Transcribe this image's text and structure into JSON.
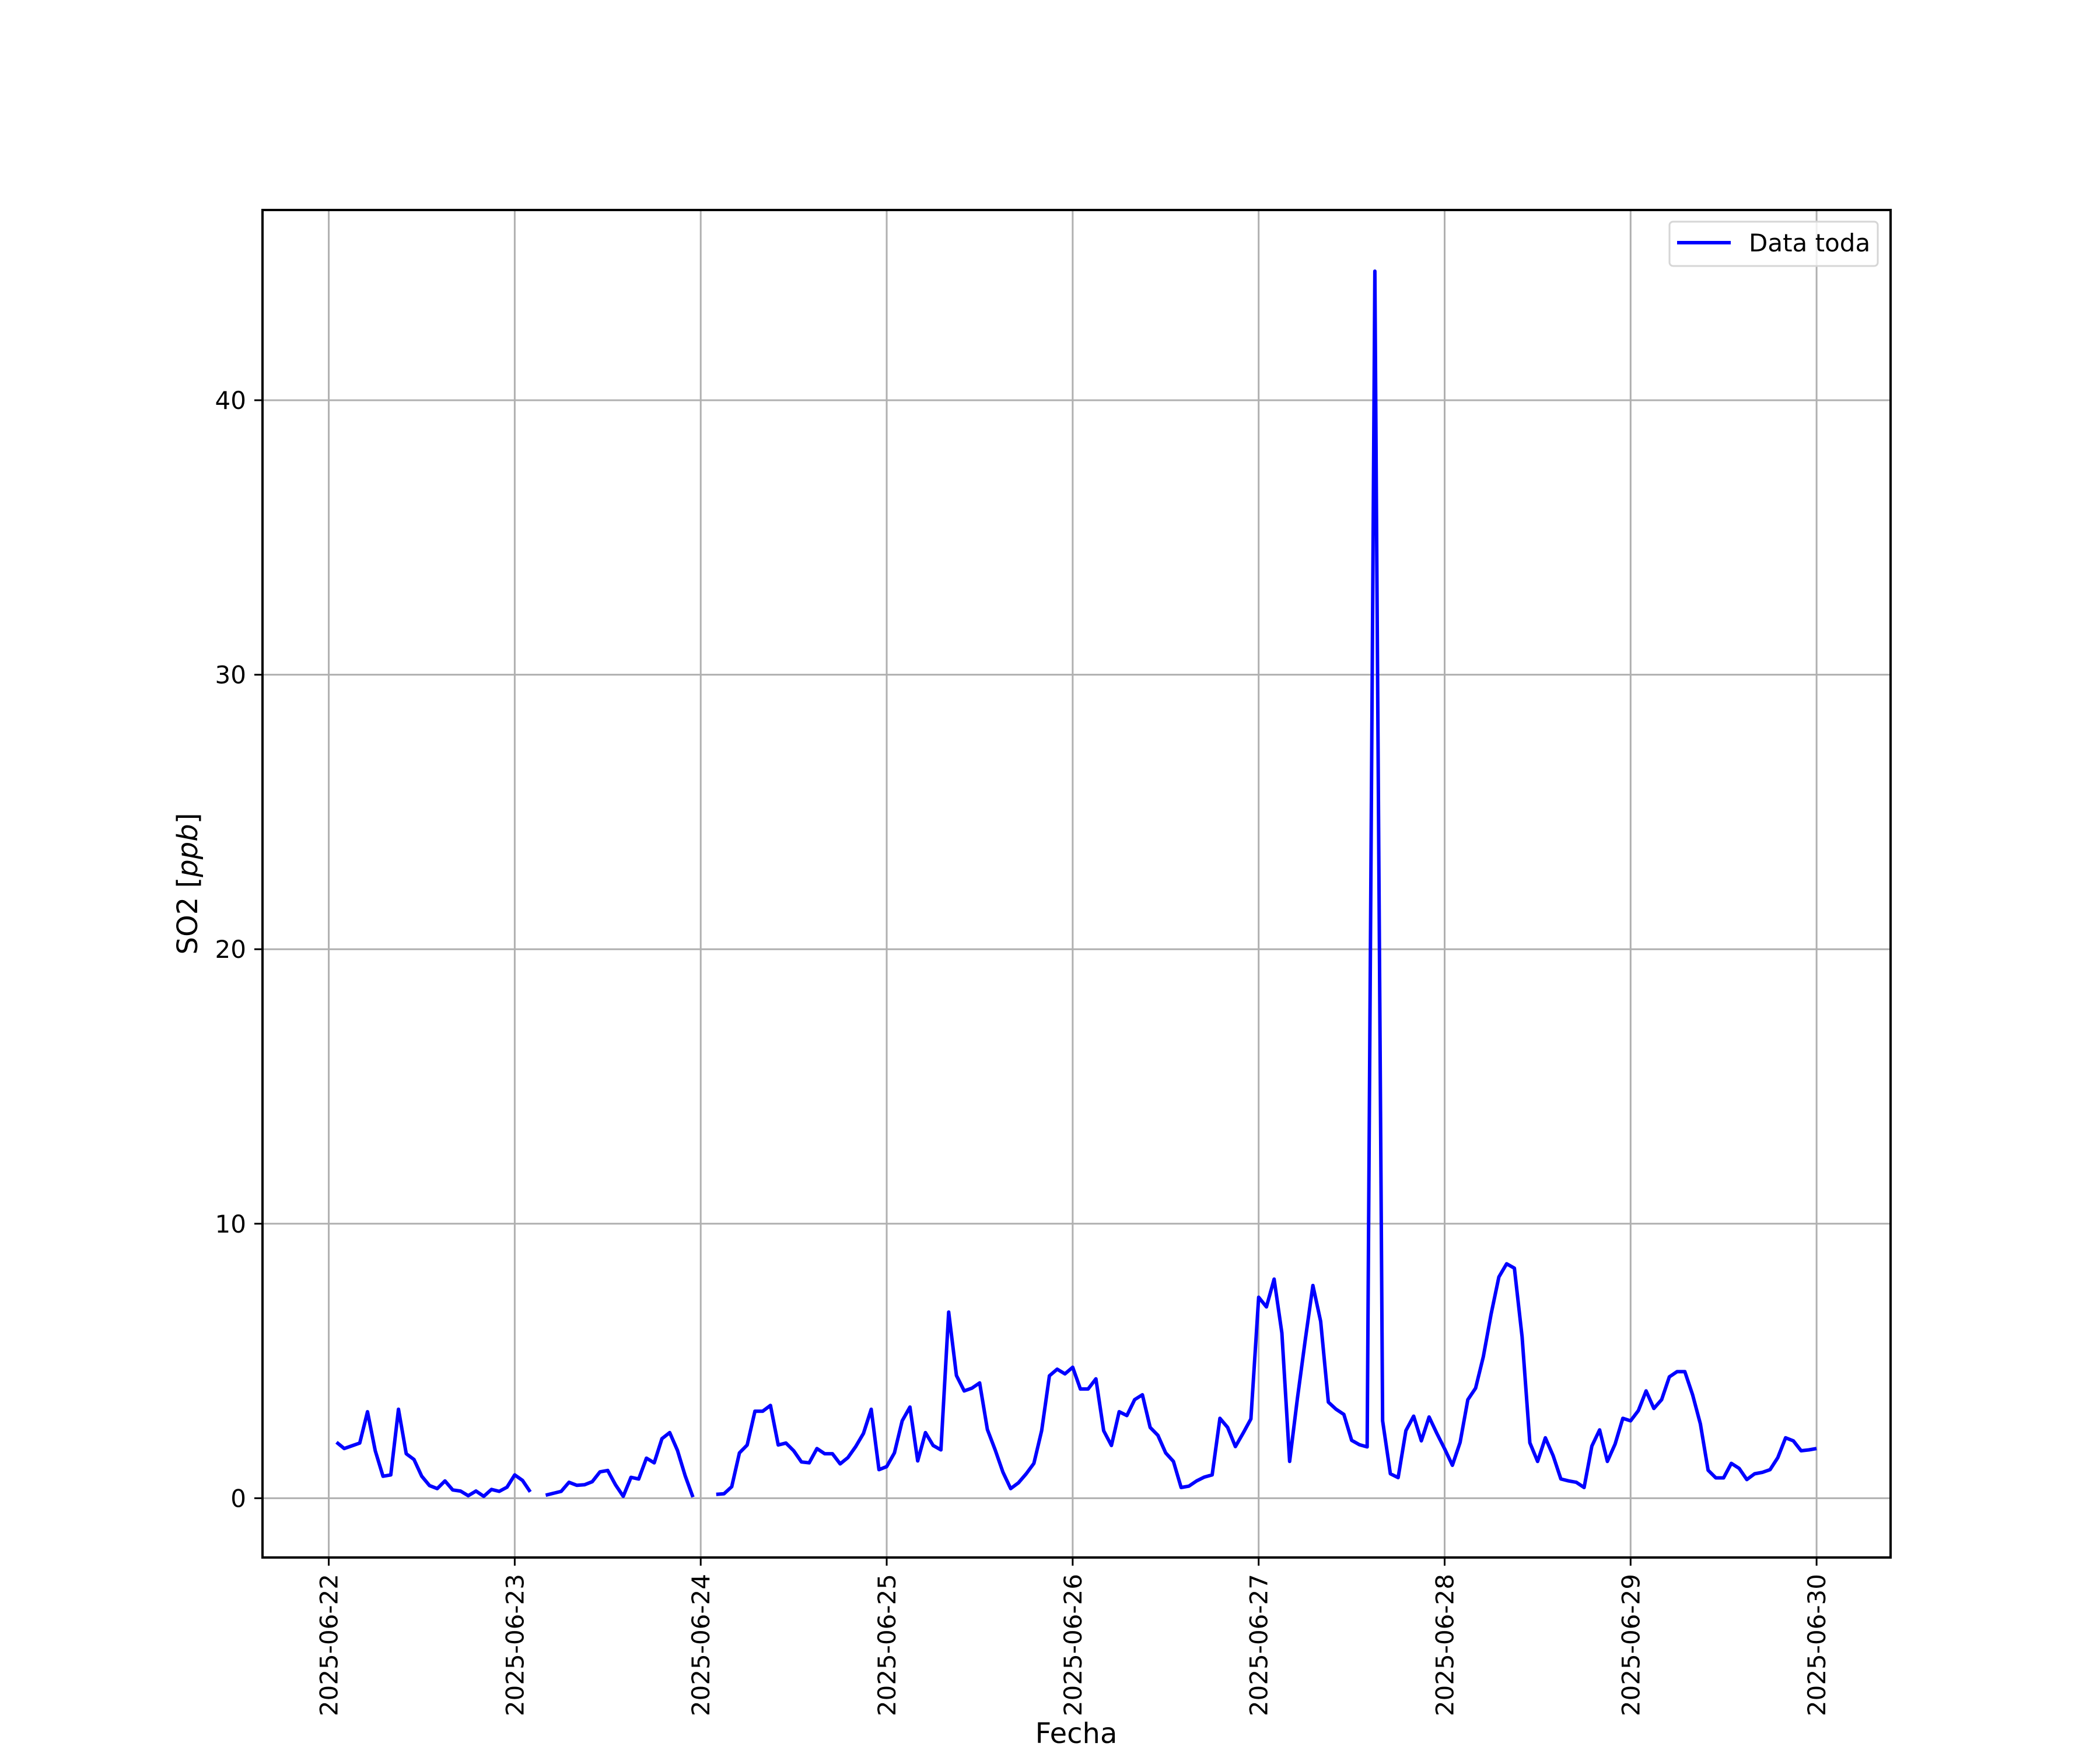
{
  "chart_data": {
    "type": "line",
    "title": "",
    "xlabel": "Fecha",
    "ylabel": "SO2 [ppb]",
    "ylabel_italic_part": "ppb",
    "xlim": [
      "2025-06-21 15:27",
      "2025-06-30 09:33"
    ],
    "ylim": [
      -2.16,
      46.93
    ],
    "grid": true,
    "legend_position": "top-right",
    "x_ticks": [
      "2025-06-22",
      "2025-06-23",
      "2025-06-24",
      "2025-06-25",
      "2025-06-26",
      "2025-06-27",
      "2025-06-28",
      "2025-06-29",
      "2025-06-30"
    ],
    "y_ticks": [
      0,
      10,
      20,
      30,
      40
    ],
    "sampling": "hourly",
    "series": [
      {
        "name": "Data toda",
        "color": "#0000ff",
        "days": [
          {
            "date": "2025-06-22",
            "hourly": [
              null,
              2.04,
              1.81,
              1.91,
              2.01,
              3.15,
              1.73,
              0.8,
              0.85,
              3.24,
              1.62,
              1.41,
              0.8,
              0.46,
              0.35,
              0.63,
              0.3,
              0.26,
              0.09,
              0.26,
              0.07,
              0.32,
              0.25,
              0.4
            ]
          },
          {
            "date": "2025-06-23",
            "hourly": [
              0.85,
              0.65,
              0.23,
              null,
              0.11,
              0.18,
              0.25,
              0.58,
              0.47,
              0.49,
              0.6,
              0.96,
              1.01,
              0.49,
              0.07,
              0.76,
              0.7,
              1.46,
              1.29,
              2.17,
              2.39,
              1.74,
              0.81,
              0.04
            ]
          },
          {
            "date": "2025-06-24",
            "hourly": [
              null,
              null,
              0.14,
              0.16,
              0.42,
              1.65,
              1.94,
              3.17,
              3.17,
              3.38,
              1.94,
              2.01,
              1.73,
              1.32,
              1.29,
              1.81,
              1.62,
              1.62,
              1.25,
              1.48,
              1.88,
              2.36,
              3.24,
              1.04
            ]
          },
          {
            "date": "2025-06-25",
            "hourly": [
              1.15,
              1.65,
              2.82,
              3.32,
              1.36,
              2.39,
              1.92,
              1.76,
              6.78,
              4.47,
              3.91,
              4.01,
              4.2,
              2.5,
              1.76,
              0.95,
              0.35,
              0.56,
              0.89,
              1.27,
              2.46,
              4.46,
              4.7,
              4.53
            ]
          },
          {
            "date": "2025-06-26",
            "hourly": [
              4.77,
              3.98,
              3.98,
              4.35,
              2.46,
              1.92,
              3.15,
              3.01,
              3.59,
              3.77,
              2.58,
              2.29,
              1.65,
              1.34,
              0.39,
              0.44,
              0.63,
              0.77,
              0.85,
              2.91,
              2.58,
              1.88,
              2.37,
              2.89
            ]
          },
          {
            "date": "2025-06-27",
            "hourly": [
              7.32,
              6.97,
              7.98,
              6.02,
              1.34,
              3.63,
              5.74,
              7.75,
              6.44,
              3.5,
              3.24,
              3.05,
              2.11,
              1.95,
              1.87,
              44.7,
              2.82,
              0.89,
              0.75,
              2.46,
              2.99,
              2.09,
              2.96,
              2.36
            ]
          },
          {
            "date": "2025-06-28",
            "hourly": [
              1.8,
              1.2,
              2.04,
              3.59,
              4.01,
              5.16,
              6.71,
              8.06,
              8.54,
              8.38,
              5.88,
              2.02,
              1.34,
              2.2,
              1.55,
              0.7,
              0.63,
              0.58,
              0.39,
              1.9,
              2.49,
              1.34,
              1.97,
              2.91
            ]
          },
          {
            "date": "2025-06-29",
            "hourly": [
              2.82,
              3.19,
              3.91,
              3.27,
              3.59,
              4.42,
              4.61,
              4.61,
              3.77,
              2.71,
              1.02,
              0.74,
              0.74,
              1.27,
              1.09,
              0.68,
              0.89,
              0.94,
              1.04,
              1.48,
              2.2,
              2.09,
              1.73,
              1.76
            ]
          },
          {
            "date": "2025-06-30",
            "hourly": [
              1.81
            ]
          }
        ]
      }
    ]
  }
}
